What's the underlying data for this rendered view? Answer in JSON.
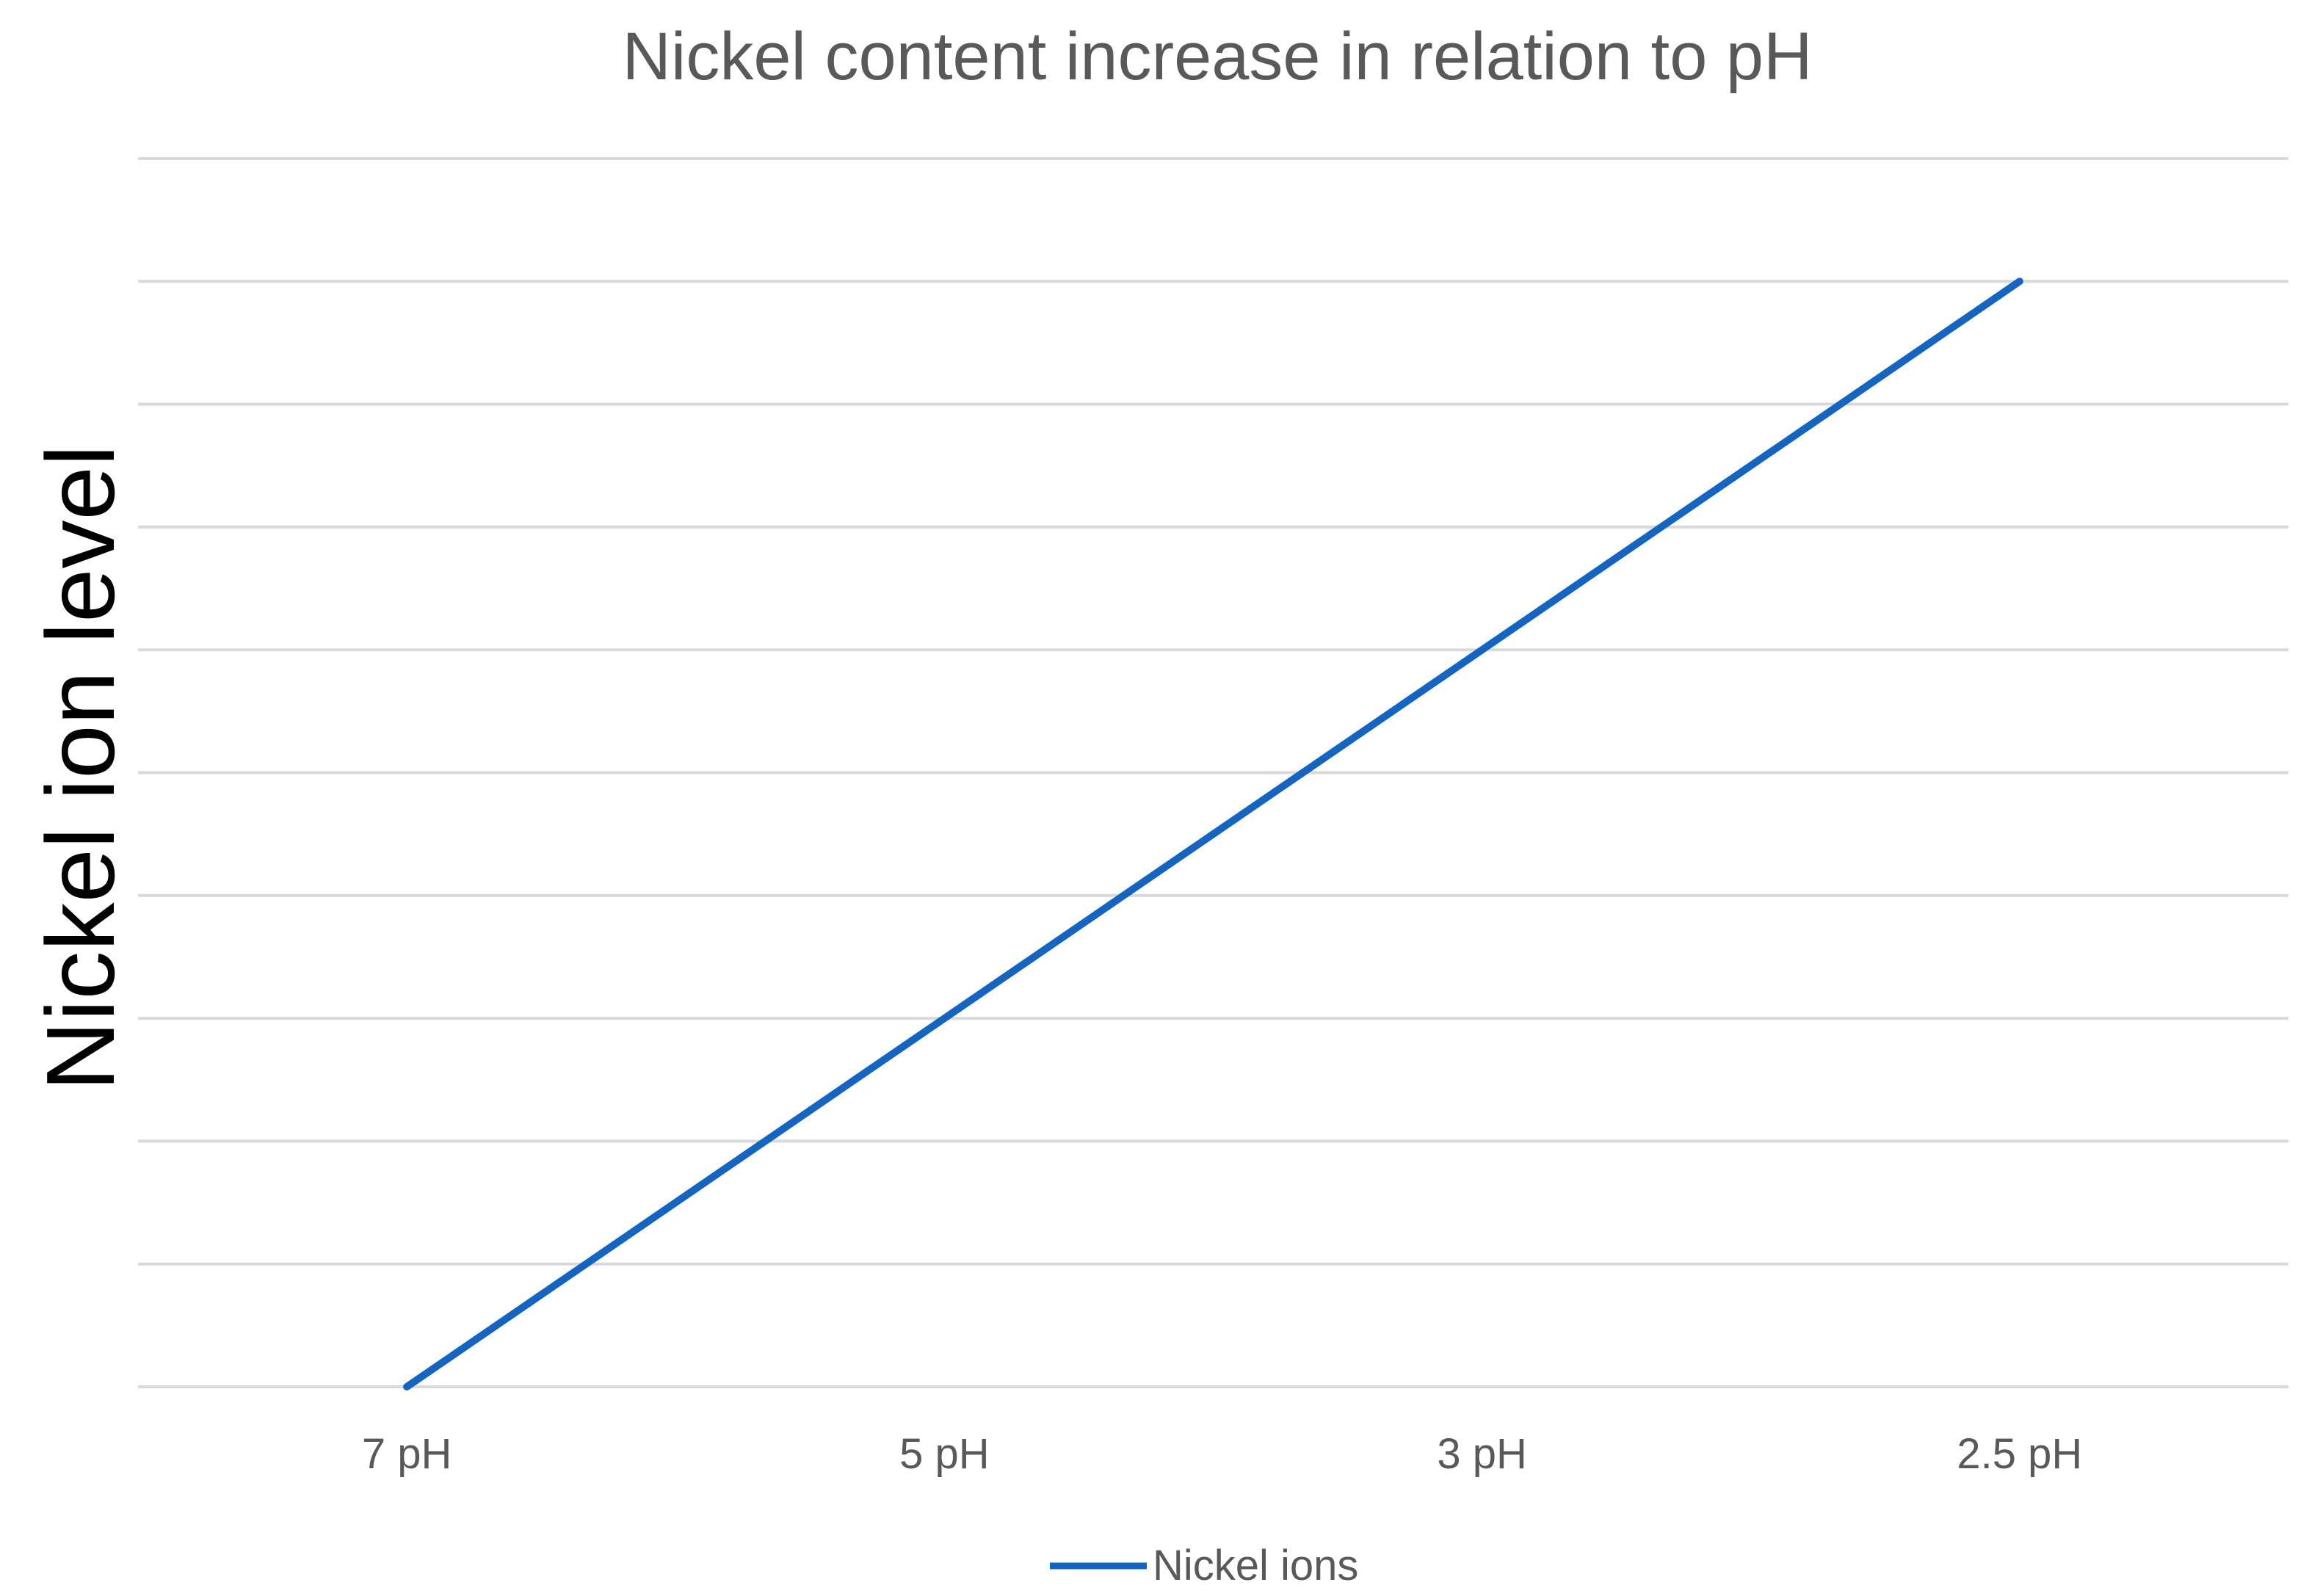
{
  "chart_data": {
    "type": "line",
    "title": "Nickel content increase in relation to pH",
    "xlabel": "",
    "ylabel": "Nickel ion level",
    "categories": [
      "7 pH",
      "5 pH",
      "3 pH",
      "2.5 pH"
    ],
    "series": [
      {
        "name": "Nickel ions",
        "values": [
          0,
          3,
          6,
          9
        ],
        "color": "#1565C0"
      }
    ],
    "ylim": [
      0,
      10
    ],
    "y_tick_labels_shown": false,
    "grid": true,
    "legend": "bottom"
  }
}
